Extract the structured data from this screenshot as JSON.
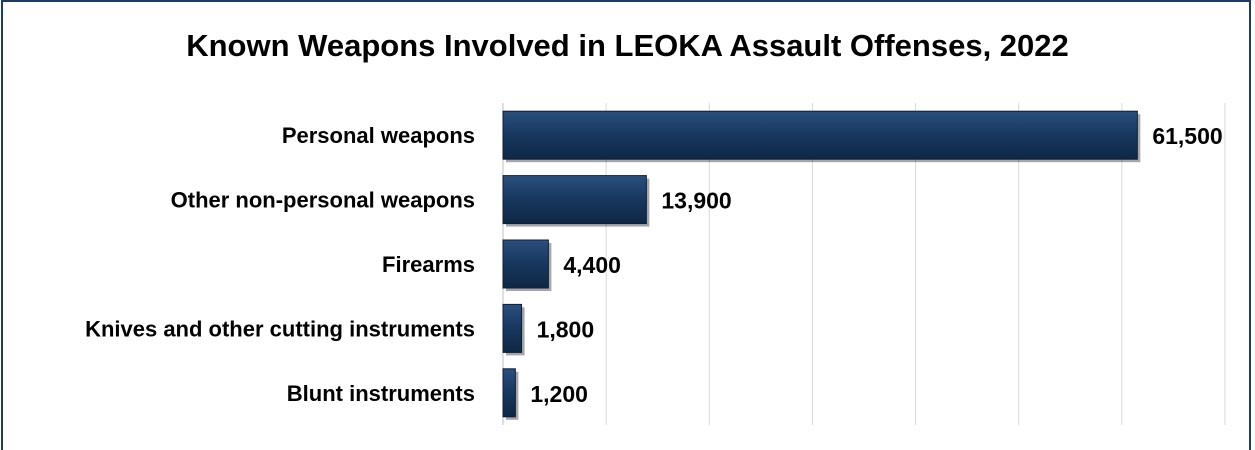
{
  "chart_data": {
    "type": "bar",
    "orientation": "horizontal",
    "title": "Known Weapons Involved in LEOKA Assault Offenses, 2022",
    "categories": [
      "Personal weapons",
      "Other non-personal weapons",
      "Firearms",
      "Knives and other cutting instruments",
      "Blunt instruments"
    ],
    "values": [
      61500,
      13900,
      4400,
      1800,
      1200
    ],
    "value_labels": [
      "61,500",
      "13,900",
      "4,400",
      "1,800",
      "1,200"
    ],
    "xlim": [
      0,
      70000
    ],
    "grid": true,
    "legend": "none",
    "bar_color": "#17375e"
  }
}
